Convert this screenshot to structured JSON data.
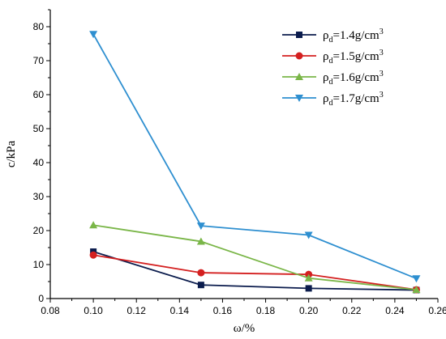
{
  "chart_data": {
    "type": "line",
    "xlabel": "ω/%",
    "ylabel": "c/kPa",
    "xlim": [
      0.08,
      0.26
    ],
    "ylim": [
      0,
      85
    ],
    "xticks": [
      "0.08",
      "0.10",
      "0.12",
      "0.14",
      "0.16",
      "0.18",
      "0.20",
      "0.22",
      "0.24",
      "0.26"
    ],
    "yticks": [
      "0",
      "10",
      "20",
      "30",
      "40",
      "50",
      "60",
      "70",
      "80"
    ],
    "grid": false,
    "legend_position": "top-right",
    "x": [
      0.1,
      0.15,
      0.2,
      0.25
    ],
    "series": [
      {
        "name": "ρd=1.4g/cm3",
        "name_base": "ρ",
        "name_sub": "d",
        "name_mid": "=1.4g/cm",
        "name_sup": "3",
        "values": [
          13.8,
          4.0,
          3.0,
          2.5
        ],
        "color": "#0b1c4d",
        "marker": "square"
      },
      {
        "name": "ρd=1.5g/cm3",
        "name_base": "ρ",
        "name_sub": "d",
        "name_mid": "=1.5g/cm",
        "name_sup": "3",
        "values": [
          12.8,
          7.6,
          7.1,
          2.6
        ],
        "color": "#d42020",
        "marker": "circle"
      },
      {
        "name": "ρd=1.6g/cm3",
        "name_base": "ρ",
        "name_sub": "d",
        "name_mid": "=1.6g/cm",
        "name_sup": "3",
        "values": [
          21.6,
          16.8,
          6.0,
          2.6
        ],
        "color": "#7ab648",
        "marker": "triangle-up"
      },
      {
        "name": "ρd=1.7g/cm3",
        "name_base": "ρ",
        "name_sub": "d",
        "name_mid": "=1.7g/cm",
        "name_sup": "3",
        "values": [
          77.8,
          21.4,
          18.7,
          5.9
        ],
        "color": "#2e8fd0",
        "marker": "triangle-down"
      }
    ]
  }
}
